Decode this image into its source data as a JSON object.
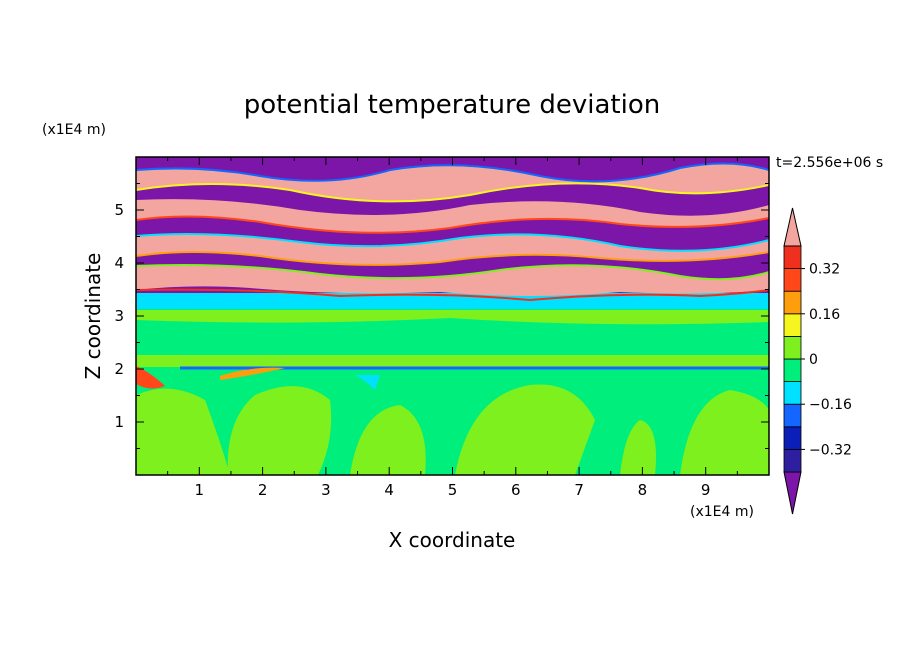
{
  "chart_data": {
    "type": "heatmap",
    "title": "potential temperature deviation",
    "xlabel": "X coordinate",
    "ylabel": "Z coordinate",
    "x_unit": "(x1E4 m)",
    "y_unit": "(x1E4 m)",
    "time_label": "t=2.556e+06 s",
    "xlim": [
      0,
      10
    ],
    "ylim": [
      0,
      6
    ],
    "x_ticks": [
      "1",
      "2",
      "3",
      "4",
      "5",
      "6",
      "7",
      "8",
      "9"
    ],
    "y_ticks": [
      "1",
      "2",
      "3",
      "4",
      "5"
    ],
    "colorbar": {
      "tick_labels": [
        "0.32",
        "0.16",
        "0",
        "-0.16",
        "-0.32"
      ],
      "tick_values": [
        0.32,
        0.16,
        0,
        -0.16,
        -0.32
      ],
      "levels": [
        -0.4,
        -0.32,
        -0.24,
        -0.16,
        -0.08,
        0,
        0.08,
        0.16,
        0.24,
        0.32,
        0.4
      ],
      "colors": [
        "#7b16a8",
        "#2e1fa1",
        "#0b1fb8",
        "#1366ff",
        "#00e0ff",
        "#00ef7c",
        "#7ef01e",
        "#f7f51f",
        "#ff9e0c",
        "#ff4719",
        "#f0301f",
        "#f3a6a0"
      ],
      "extend": "both"
    },
    "bands": [
      {
        "z_from": 0.0,
        "z_to": 1.9,
        "value": 0.04,
        "note": "mixed green fields"
      },
      {
        "z_from": 1.9,
        "z_to": 2.05,
        "value": -0.2,
        "note": "thin blue line"
      },
      {
        "z_from": 2.05,
        "z_to": 3.1,
        "value": 0.04
      },
      {
        "z_from": 3.1,
        "z_to": 3.4,
        "value": -0.06
      },
      {
        "z_from": 3.4,
        "z_to": 6.0,
        "value": "alternating",
        "note": "alternating strongly positive / strongly negative layers"
      }
    ]
  }
}
